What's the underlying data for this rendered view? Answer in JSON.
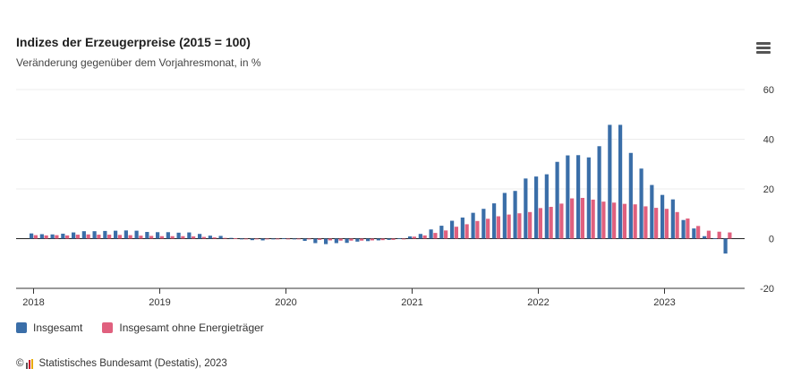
{
  "header": {
    "title": "Indizes der Erzeugerpreise (2015 = 100)",
    "subtitle": "Veränderung gegenüber dem Vorjahresmonat, in %"
  },
  "menu_icon": "hamburger-menu-icon",
  "legend": [
    {
      "label": "Insgesamt",
      "color": "#3a6ea8"
    },
    {
      "label": "Insgesamt ohne Energieträger",
      "color": "#e0607e"
    }
  ],
  "credit": {
    "copyright": "©",
    "text": "Statistisches Bundesamt (Destatis), 2023"
  },
  "chart_data": {
    "type": "bar",
    "title": "Indizes der Erzeugerpreise (2015 = 100)",
    "subtitle": "Veränderung gegenüber dem Vorjahresmonat, in %",
    "x_start": "2018-01",
    "x_ticks": [
      "2018",
      "2019",
      "2020",
      "2021",
      "2022",
      "2023"
    ],
    "y_ticks": [
      60,
      40,
      20,
      0,
      -20
    ],
    "ylim": [
      -20,
      60
    ],
    "grid": true,
    "legend_position": "bottom-left",
    "series": [
      {
        "name": "Insgesamt",
        "color": "#3a6ea8",
        "values": [
          2.1,
          1.8,
          1.7,
          2.0,
          2.5,
          3.0,
          3.0,
          3.1,
          3.2,
          3.3,
          3.2,
          2.7,
          2.6,
          2.6,
          2.4,
          2.5,
          1.9,
          1.2,
          1.1,
          0.3,
          -0.1,
          -0.6,
          -0.7,
          -0.2,
          0.2,
          -0.1,
          -0.9,
          -1.8,
          -2.2,
          -1.8,
          -1.7,
          -1.2,
          -1.0,
          -0.7,
          -0.5,
          0.2,
          0.9,
          1.9,
          3.7,
          5.2,
          7.2,
          8.5,
          10.4,
          12.0,
          14.2,
          18.4,
          19.2,
          24.2,
          25.0,
          25.9,
          30.9,
          33.5,
          33.6,
          32.7,
          37.2,
          45.8,
          45.8,
          34.5,
          28.2,
          21.6,
          17.6,
          15.8,
          7.5,
          4.1,
          1.0,
          0.1,
          -6.0
        ]
      },
      {
        "name": "Insgesamt ohne Energieträger",
        "color": "#e0607e",
        "values": [
          1.4,
          1.3,
          1.4,
          1.3,
          1.6,
          1.7,
          1.6,
          1.6,
          1.5,
          1.4,
          1.2,
          1.1,
          1.0,
          1.0,
          1.0,
          0.9,
          0.7,
          0.5,
          0.3,
          0.1,
          -0.1,
          -0.1,
          -0.1,
          -0.1,
          -0.2,
          -0.2,
          -0.3,
          -0.5,
          -0.7,
          -0.8,
          -0.8,
          -0.8,
          -0.7,
          -0.6,
          -0.5,
          -0.3,
          0.8,
          1.3,
          2.3,
          3.3,
          4.8,
          5.8,
          7.1,
          8.0,
          9.0,
          9.7,
          10.2,
          10.7,
          12.3,
          12.8,
          14.1,
          16.2,
          16.4,
          15.7,
          14.9,
          14.5,
          14.0,
          13.8,
          13.0,
          12.4,
          12.0,
          10.7,
          8.1,
          5.1,
          3.2,
          2.8,
          2.5
        ]
      }
    ]
  }
}
